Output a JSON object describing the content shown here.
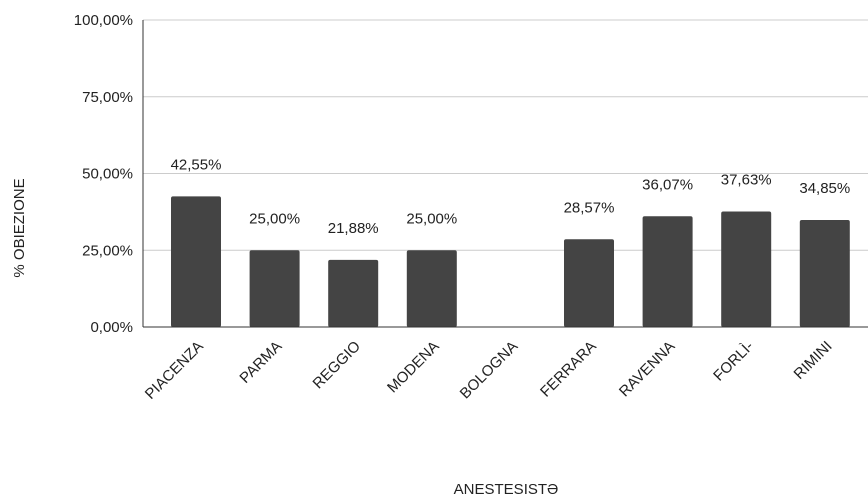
{
  "chart_data": {
    "type": "bar",
    "categories": [
      "PIACENZA",
      "PARMA",
      "REGGIO",
      "MODENA",
      "BOLOGNA",
      "FERRARA",
      "RAVENNA",
      "FORLÌ-",
      "RIMINI"
    ],
    "values": [
      42.55,
      25.0,
      21.88,
      25.0,
      null,
      28.57,
      36.07,
      37.63,
      34.85
    ],
    "data_labels": [
      "42,55%",
      "25,00%",
      "21,88%",
      "25,00%",
      "",
      "28,57%",
      "36,07%",
      "37,63%",
      "34,85%"
    ],
    "title": "",
    "xlabel": "ANESTESISTƏ",
    "ylabel": "% OBIEZIONE",
    "ylim": [
      0,
      100
    ],
    "yticks": [
      "0,00%",
      "25,00%",
      "50,00%",
      "75,00%",
      "100,00%"
    ],
    "ytick_values": [
      0,
      25,
      50,
      75,
      100
    ],
    "grid": true,
    "legend": "none",
    "bar_color": "#444444",
    "grid_color": "#cccccc"
  }
}
